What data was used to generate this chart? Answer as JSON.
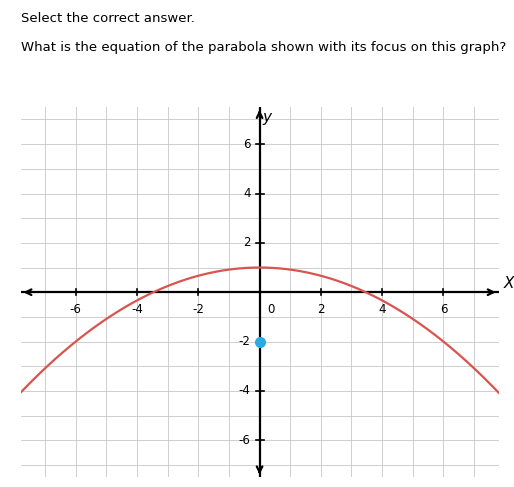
{
  "title_text": "Select the correct answer.",
  "question_text": "What is the equation of the parabola shown with its focus on this graph?",
  "vertex": [
    0,
    1
  ],
  "focus": [
    0,
    -2
  ],
  "p": -3,
  "x_range": [
    -7.8,
    7.8
  ],
  "y_range": [
    -7.5,
    7.5
  ],
  "x_ticks": [
    -6,
    -4,
    -2,
    0,
    2,
    4,
    6
  ],
  "y_ticks": [
    -6,
    -4,
    -2,
    2,
    4,
    6
  ],
  "parabola_color": "#d9534f",
  "focus_color": "#29ABE2",
  "grid_color": "#c8c8c8",
  "axis_color": "#000000",
  "background_color": "#ffffff",
  "parabola_linewidth": 1.6,
  "focus_markersize": 7,
  "title_fontsize": 9.5,
  "question_fontsize": 9.5,
  "tick_fontsize": 8.5,
  "axis_label_fontsize": 11
}
